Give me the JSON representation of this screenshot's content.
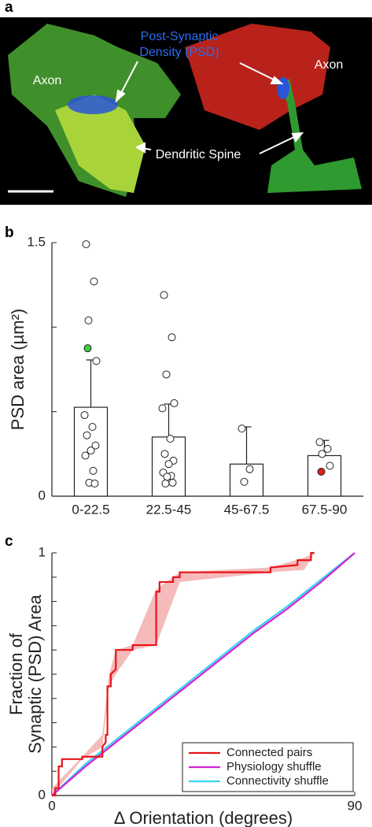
{
  "panel_a": {
    "label": "a",
    "annotations": [
      "Post-Synaptic",
      "Density (PSD)",
      "Axon",
      "Axon",
      "Dendritic Spine"
    ]
  },
  "chart_data": [
    {
      "type": "bar",
      "panel": "b",
      "ylabel": "PSD area (µm²)",
      "categories": [
        "0-22.5",
        "22.5-45",
        "45-67.5",
        "67.5-90"
      ],
      "values": [
        0.526,
        0.35,
        0.19,
        0.24
      ],
      "errors": [
        0.28,
        0.195,
        0.22,
        0.09
      ],
      "color": "#ffffff",
      "points": [
        [
          1.49,
          1.27,
          1.04,
          0.8,
          0.48,
          0.41,
          0.36,
          0.3,
          0.27,
          0.24,
          0.15,
          0.08,
          0.075
        ],
        [
          1.19,
          0.94,
          0.72,
          0.55,
          0.52,
          0.34,
          0.25,
          0.21,
          0.19,
          0.14,
          0.12,
          0.115,
          0.08,
          0.075
        ],
        [
          0.4,
          0.16,
          0.085
        ],
        [
          0.32,
          0.28,
          0.25,
          0.18
        ]
      ],
      "highlighted_points": [
        {
          "category": "0-22.5",
          "value": 0.875,
          "color": "#3fd13f"
        },
        {
          "category": "67.5-90",
          "value": 0.145,
          "color": "#e0201c"
        }
      ],
      "ylim": [
        0,
        1.5
      ],
      "yticks": [
        0,
        {
          "value": 0.5,
          "label": null
        },
        {
          "value": 1,
          "label": null
        },
        1.5
      ]
    },
    {
      "type": "line",
      "panel": "c",
      "ylabel": [
        "Fraction of",
        "Synaptic (PSD) Area"
      ],
      "xlabel": "Δ Orientation (degrees)",
      "xlim": [
        0,
        90
      ],
      "ylim": [
        0,
        1
      ],
      "xticks": [
        0,
        90
      ],
      "yticks": [
        0,
        {
          "value": 0.1,
          "label": null
        },
        {
          "value": 0.2,
          "label": null
        },
        {
          "value": 0.3,
          "label": null
        },
        {
          "value": 0.4,
          "label": null
        },
        {
          "value": 0.5,
          "label": null
        },
        {
          "value": 0.6,
          "label": null
        },
        {
          "value": 0.7,
          "label": null
        },
        {
          "value": 0.8,
          "label": null
        },
        {
          "value": 0.9,
          "label": null
        },
        1
      ],
      "band": {
        "color": "#f5baba",
        "x": [
          0,
          9,
          15,
          17,
          19,
          24,
          31,
          38,
          65,
          75,
          78
        ],
        "lower": [
          0,
          0.15,
          0.2,
          0.45,
          0.5,
          0.6,
          0.62,
          0.88,
          0.92,
          0.93,
          1
        ],
        "upper": [
          0.03,
          0.16,
          0.25,
          0.5,
          0.6,
          0.62,
          0.85,
          0.92,
          0.94,
          0.98,
          1
        ]
      },
      "series": [
        {
          "name": "Connected pairs",
          "color": "#e8141b",
          "x": [
            0,
            1,
            1,
            2,
            2,
            3,
            3,
            9,
            9,
            15,
            15,
            16,
            16,
            16.5,
            16.5,
            17.5,
            17.5,
            19,
            19,
            24,
            24,
            31,
            31,
            32,
            32,
            36,
            36,
            38,
            38,
            65,
            65,
            73,
            73,
            77,
            77,
            78
          ],
          "values": [
            0,
            0,
            0.03,
            0.03,
            0.12,
            0.12,
            0.15,
            0.15,
            0.16,
            0.16,
            0.2,
            0.22,
            0.25,
            0.25,
            0.45,
            0.45,
            0.5,
            0.52,
            0.6,
            0.6,
            0.62,
            0.62,
            0.84,
            0.84,
            0.88,
            0.88,
            0.9,
            0.9,
            0.92,
            0.92,
            0.94,
            0.95,
            0.97,
            0.97,
            1,
            1
          ]
        },
        {
          "name": "Physiology shuffle",
          "color": "#d61fd6",
          "x": [
            0,
            10,
            20,
            30,
            40,
            50,
            60,
            70,
            80,
            90
          ],
          "values": [
            0,
            0.12,
            0.23,
            0.34,
            0.45,
            0.56,
            0.67,
            0.77,
            0.88,
            1
          ]
        },
        {
          "name": "Connectivity shuffle",
          "color": "#33d6ea",
          "x": [
            0,
            10,
            20,
            30,
            40,
            50,
            60,
            70,
            80,
            90
          ],
          "values": [
            0,
            0.13,
            0.24,
            0.35,
            0.46,
            0.57,
            0.68,
            0.78,
            0.89,
            1
          ]
        }
      ],
      "legend": "lower right"
    }
  ]
}
